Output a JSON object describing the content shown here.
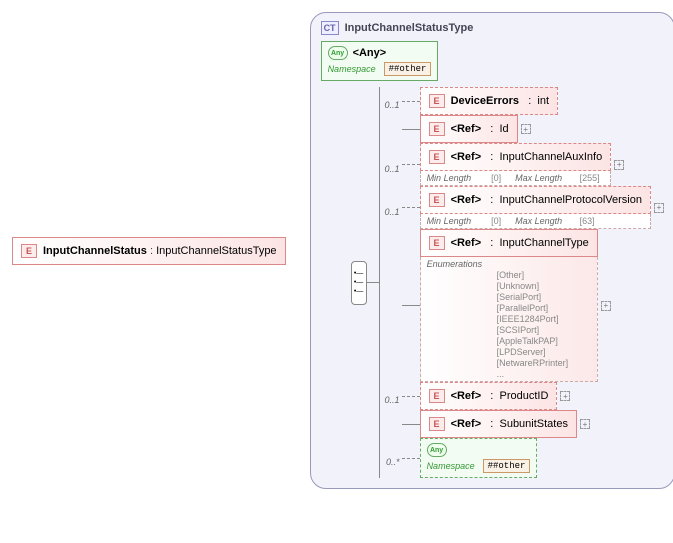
{
  "root": {
    "name": "InputChannelStatus",
    "type": "InputChannelStatusType"
  },
  "ct": {
    "name": "InputChannelStatusType"
  },
  "anyTop": {
    "label": "<Any>",
    "nsKey": "Namespace",
    "nsVal": "##other"
  },
  "anyBottom": {
    "label": "<Any>",
    "nsKey": "Namespace",
    "nsVal": "##other",
    "occ": "0..*"
  },
  "children": [
    {
      "occ": "0..1",
      "ref": false,
      "label": "DeviceErrors",
      "type": "int",
      "dashed": true
    },
    {
      "occ": "",
      "ref": true,
      "label": "<Ref>",
      "type": "Id",
      "expand": true
    },
    {
      "occ": "0..1",
      "ref": true,
      "label": "<Ref>",
      "type": "InputChannelAuxInfo",
      "dashed": true,
      "expand": true,
      "meta": [
        {
          "k": "Min Length",
          "v": "[0]"
        },
        {
          "k": "Max Length",
          "v": "[255]"
        }
      ]
    },
    {
      "occ": "0..1",
      "ref": true,
      "label": "<Ref>",
      "type": "InputChannelProtocolVersion",
      "dashed": true,
      "expand": true,
      "meta": [
        {
          "k": "Min Length",
          "v": "[0]"
        },
        {
          "k": "Max Length",
          "v": "[63]"
        }
      ]
    },
    {
      "occ": "",
      "ref": true,
      "label": "<Ref>",
      "type": "InputChannelType",
      "expand": true,
      "enumKey": "Enumerations",
      "enums": [
        "[Other]",
        "[Unknown]",
        "[SerialPort]",
        "[ParallelPort]",
        "[IEEE1284Port]",
        "[SCSIPort]",
        "[AppleTalkPAP]",
        "[LPDServer]",
        "[NetwareRPrinter]",
        "..."
      ]
    },
    {
      "occ": "0..1",
      "ref": true,
      "label": "<Ref>",
      "type": "ProductID",
      "dashed": true,
      "expand": true
    },
    {
      "occ": "",
      "ref": true,
      "label": "<Ref>",
      "type": "SubunitStates",
      "expand": true
    }
  ],
  "colors": {
    "elemBorder": "#d88",
    "ctBorder": "#99b",
    "ctBg": "#f2f2fb"
  }
}
